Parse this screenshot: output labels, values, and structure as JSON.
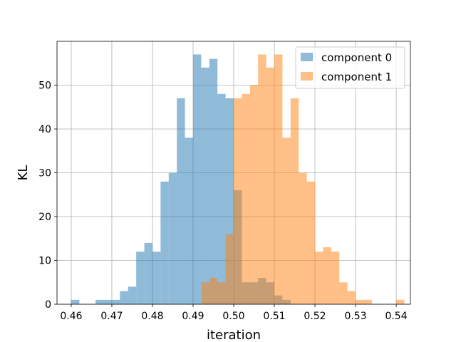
{
  "chart_data": {
    "type": "histogram",
    "xlabel": "iteration",
    "ylabel": "KL",
    "xlim": [
      0.4565,
      0.5435
    ],
    "ylim": [
      0,
      60
    ],
    "xticks": [
      0.46,
      0.47,
      0.48,
      0.49,
      0.5,
      0.51,
      0.52,
      0.53,
      0.54
    ],
    "xtick_labels": [
      "0.46",
      "0.47",
      "0.48",
      "0.49",
      "0.50",
      "0.51",
      "0.52",
      "0.53",
      "0.54"
    ],
    "yticks": [
      0,
      10,
      20,
      30,
      40,
      50
    ],
    "ytick_labels": [
      "0",
      "10",
      "20",
      "30",
      "40",
      "50"
    ],
    "grid": true,
    "legend_position": "top-right",
    "series": [
      {
        "name": "component 0",
        "color": "#1f77b4",
        "alpha": 0.5,
        "bin_start": 0.46,
        "bin_width": 0.002,
        "counts": [
          1,
          0,
          0,
          1,
          1,
          1,
          3,
          4,
          12,
          14,
          12,
          28,
          30,
          47,
          38,
          57,
          54,
          56,
          48,
          47,
          26,
          5,
          5,
          6,
          5,
          2,
          1,
          0,
          0,
          0,
          0,
          0,
          0,
          0,
          0,
          0,
          0,
          0,
          0,
          0
        ]
      },
      {
        "name": "component 1",
        "color": "#ff7f0e",
        "alpha": 0.5,
        "bin_start": 0.492,
        "bin_width": 0.002,
        "counts": [
          5,
          6,
          5,
          16,
          47,
          48,
          50,
          57,
          54,
          57,
          38,
          47,
          30,
          28,
          12,
          13,
          12,
          5,
          3,
          1,
          1,
          0,
          0,
          0,
          1
        ]
      }
    ]
  }
}
